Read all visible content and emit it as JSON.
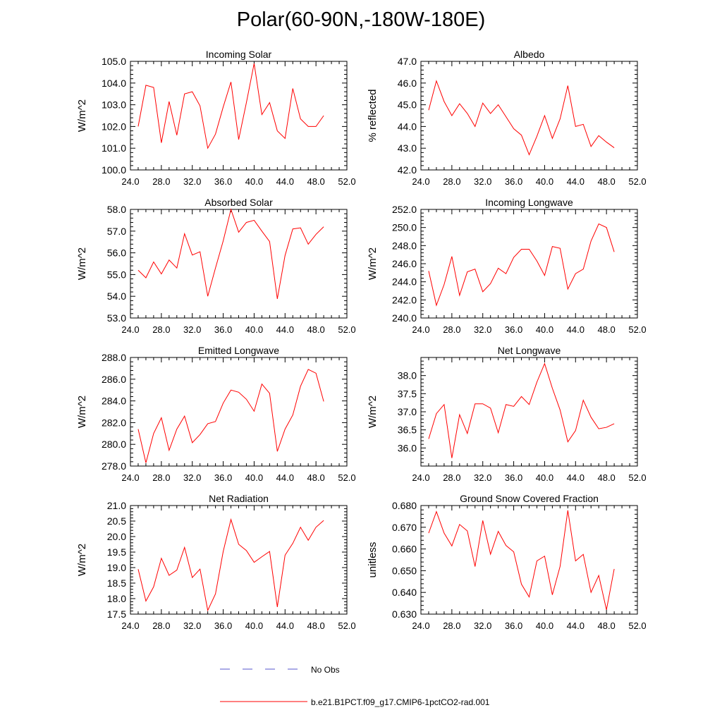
{
  "title": "Polar(60-90N,-180W-180E)",
  "colors": {
    "model_line": "#ff0000",
    "obs_line": "#5555cc",
    "axis": "#000000"
  },
  "legend": {
    "entries": [
      {
        "label": "No Obs",
        "style": "dashed",
        "color": "#5555cc"
      },
      {
        "label": "b.e21.B1PCT.f09_g17.CMIP6-1pctCO2-rad.001",
        "style": "solid",
        "color": "#ff0000"
      }
    ]
  },
  "chart_data": [
    {
      "type": "line",
      "title": "Incoming Solar",
      "ylabel": "W/m^2",
      "xlim": [
        24,
        52
      ],
      "ylim": [
        100,
        105
      ],
      "xticks": [
        24,
        28,
        32,
        36,
        40,
        44,
        48,
        52
      ],
      "xtick_labels": [
        "24.0",
        "28.0",
        "32.0",
        "36.0",
        "40.0",
        "44.0",
        "48.0",
        "52.0"
      ],
      "yticks": [
        100,
        101,
        102,
        103,
        104,
        105
      ],
      "ytick_labels": [
        "100.0",
        "101.0",
        "102.0",
        "103.0",
        "104.0",
        "105.0"
      ],
      "x": [
        25,
        26,
        27,
        28,
        29,
        30,
        31,
        32,
        33,
        34,
        35,
        36,
        37,
        38,
        39,
        40,
        41,
        42,
        43,
        44,
        45,
        46,
        47,
        48,
        49
      ],
      "series": [
        {
          "values": [
            102.0,
            103.9,
            103.8,
            101.25,
            103.15,
            101.6,
            103.5,
            103.6,
            102.95,
            101.0,
            101.65,
            102.9,
            104.05,
            101.4,
            103.1,
            104.9,
            102.55,
            103.1,
            101.8,
            101.45,
            103.75,
            102.35,
            102.0,
            102.0,
            102.5
          ]
        }
      ]
    },
    {
      "type": "line",
      "title": "Albedo",
      "ylabel": "% reflected",
      "xlim": [
        24,
        52
      ],
      "ylim": [
        42,
        47
      ],
      "xticks": [
        24,
        28,
        32,
        36,
        40,
        44,
        48,
        52
      ],
      "xtick_labels": [
        "24.0",
        "28.0",
        "32.0",
        "36.0",
        "40.0",
        "44.0",
        "48.0",
        "52.0"
      ],
      "yticks": [
        42,
        43,
        44,
        45,
        46,
        47
      ],
      "ytick_labels": [
        "42.0",
        "43.0",
        "44.0",
        "45.0",
        "46.0",
        "47.0"
      ],
      "x": [
        25,
        26,
        27,
        28,
        29,
        30,
        31,
        32,
        33,
        34,
        35,
        36,
        37,
        38,
        39,
        40,
        41,
        42,
        43,
        44,
        45,
        46,
        47,
        48,
        49
      ],
      "series": [
        {
          "values": [
            44.75,
            46.1,
            45.15,
            44.5,
            45.05,
            44.6,
            44.0,
            45.08,
            44.6,
            45.0,
            44.45,
            43.9,
            43.6,
            42.7,
            43.55,
            44.5,
            43.45,
            44.35,
            45.88,
            44.0,
            44.1,
            43.08,
            43.58,
            43.28,
            43.02
          ]
        }
      ]
    },
    {
      "type": "line",
      "title": "Absorbed Solar",
      "ylabel": "W/m^2",
      "xlim": [
        24,
        52
      ],
      "ylim": [
        53,
        58
      ],
      "xticks": [
        24,
        28,
        32,
        36,
        40,
        44,
        48,
        52
      ],
      "xtick_labels": [
        "24.0",
        "28.0",
        "32.0",
        "36.0",
        "40.0",
        "44.0",
        "48.0",
        "52.0"
      ],
      "yticks": [
        53,
        54,
        55,
        56,
        57,
        58
      ],
      "ytick_labels": [
        "53.0",
        "54.0",
        "55.0",
        "56.0",
        "57.0",
        "58.0"
      ],
      "x": [
        25,
        26,
        27,
        28,
        29,
        30,
        31,
        32,
        33,
        34,
        35,
        36,
        37,
        38,
        39,
        40,
        41,
        42,
        43,
        44,
        45,
        46,
        47,
        48,
        49
      ],
      "series": [
        {
          "values": [
            55.2,
            54.85,
            55.58,
            55.03,
            55.67,
            55.3,
            56.88,
            55.9,
            56.05,
            54.0,
            55.3,
            56.55,
            58.0,
            56.95,
            57.4,
            57.5,
            57.0,
            56.52,
            53.88,
            55.88,
            57.1,
            57.15,
            56.4,
            56.85,
            57.2
          ]
        }
      ]
    },
    {
      "type": "line",
      "title": "Incoming Longwave",
      "ylabel": "W/m^2",
      "xlim": [
        24,
        52
      ],
      "ylim": [
        240,
        252
      ],
      "xticks": [
        24,
        28,
        32,
        36,
        40,
        44,
        48,
        52
      ],
      "xtick_labels": [
        "24.0",
        "28.0",
        "32.0",
        "36.0",
        "40.0",
        "44.0",
        "48.0",
        "52.0"
      ],
      "yticks": [
        240,
        242,
        244,
        246,
        248,
        250,
        252
      ],
      "ytick_labels": [
        "240.0",
        "242.0",
        "244.0",
        "246.0",
        "248.0",
        "250.0",
        "252.0"
      ],
      "x": [
        25,
        26,
        27,
        28,
        29,
        30,
        31,
        32,
        33,
        34,
        35,
        36,
        37,
        38,
        39,
        40,
        41,
        42,
        43,
        44,
        45,
        46,
        47,
        48,
        49
      ],
      "series": [
        {
          "values": [
            245.2,
            241.4,
            243.7,
            246.8,
            242.5,
            245.1,
            245.4,
            242.9,
            243.8,
            245.5,
            244.9,
            246.7,
            247.6,
            247.6,
            246.3,
            244.7,
            247.9,
            247.7,
            243.2,
            244.9,
            245.4,
            248.5,
            250.4,
            250.0,
            247.3
          ]
        }
      ]
    },
    {
      "type": "line",
      "title": "Emitted Longwave",
      "ylabel": "W/m^2",
      "xlim": [
        24,
        52
      ],
      "ylim": [
        278,
        288
      ],
      "xticks": [
        24,
        28,
        32,
        36,
        40,
        44,
        48,
        52
      ],
      "xtick_labels": [
        "24.0",
        "28.0",
        "32.0",
        "36.0",
        "40.0",
        "44.0",
        "48.0",
        "52.0"
      ],
      "yticks": [
        278,
        280,
        282,
        284,
        286,
        288
      ],
      "ytick_labels": [
        "278.0",
        "280.0",
        "282.0",
        "284.0",
        "286.0",
        "288.0"
      ],
      "x": [
        25,
        26,
        27,
        28,
        29,
        30,
        31,
        32,
        33,
        34,
        35,
        36,
        37,
        38,
        39,
        40,
        41,
        42,
        43,
        44,
        45,
        46,
        47,
        48,
        49
      ],
      "series": [
        {
          "values": [
            281.4,
            278.3,
            281.0,
            282.45,
            279.45,
            281.4,
            282.6,
            280.15,
            280.9,
            281.9,
            282.1,
            283.8,
            285.0,
            284.8,
            284.15,
            283.05,
            285.55,
            284.7,
            279.35,
            281.4,
            282.7,
            285.35,
            286.9,
            286.55,
            283.95
          ]
        }
      ]
    },
    {
      "type": "line",
      "title": "Net Longwave",
      "ylabel": "W/m^2",
      "xlim": [
        24,
        52
      ],
      "ylim": [
        35.5,
        38.5
      ],
      "xticks": [
        24,
        28,
        32,
        36,
        40,
        44,
        48,
        52
      ],
      "xtick_labels": [
        "24.0",
        "28.0",
        "32.0",
        "36.0",
        "40.0",
        "44.0",
        "48.0",
        "52.0"
      ],
      "yticks": [
        36.0,
        36.5,
        37.0,
        37.5,
        38.0
      ],
      "ytick_labels": [
        "36.0",
        "36.5",
        "37.0",
        "37.5",
        "38.0"
      ],
      "x": [
        25,
        26,
        27,
        28,
        29,
        30,
        31,
        32,
        33,
        34,
        35,
        36,
        37,
        38,
        39,
        40,
        41,
        42,
        43,
        44,
        45,
        46,
        47,
        48,
        49
      ],
      "series": [
        {
          "values": [
            36.25,
            36.95,
            37.2,
            35.72,
            36.92,
            36.4,
            37.22,
            37.22,
            37.1,
            36.42,
            37.2,
            37.15,
            37.42,
            37.2,
            37.82,
            38.33,
            37.65,
            37.05,
            36.17,
            36.48,
            37.32,
            36.85,
            36.53,
            36.57,
            36.67
          ]
        }
      ]
    },
    {
      "type": "line",
      "title": "Net Radiation",
      "ylabel": "W/m^2",
      "xlim": [
        24,
        52
      ],
      "ylim": [
        17.5,
        21.0
      ],
      "xticks": [
        24,
        28,
        32,
        36,
        40,
        44,
        48,
        52
      ],
      "xtick_labels": [
        "24.0",
        "28.0",
        "32.0",
        "36.0",
        "40.0",
        "44.0",
        "48.0",
        "52.0"
      ],
      "yticks": [
        17.5,
        18.0,
        18.5,
        19.0,
        19.5,
        20.0,
        20.5,
        21.0
      ],
      "ytick_labels": [
        "17.5",
        "18.0",
        "18.5",
        "19.0",
        "19.5",
        "20.0",
        "20.5",
        "21.0"
      ],
      "x": [
        25,
        26,
        27,
        28,
        29,
        30,
        31,
        32,
        33,
        34,
        35,
        36,
        37,
        38,
        39,
        40,
        41,
        42,
        43,
        44,
        45,
        46,
        47,
        48,
        49
      ],
      "series": [
        {
          "values": [
            18.95,
            17.92,
            18.38,
            19.3,
            18.75,
            18.92,
            19.65,
            18.68,
            18.95,
            17.62,
            18.15,
            19.52,
            20.55,
            19.75,
            19.55,
            19.17,
            19.35,
            19.52,
            17.73,
            19.4,
            19.78,
            20.3,
            19.88,
            20.3,
            20.52
          ]
        }
      ]
    },
    {
      "type": "line",
      "title": "Ground Snow Covered Fraction",
      "ylabel": "unitless",
      "xlim": [
        24,
        52
      ],
      "ylim": [
        0.63,
        0.68
      ],
      "xticks": [
        24,
        28,
        32,
        36,
        40,
        44,
        48,
        52
      ],
      "xtick_labels": [
        "24.0",
        "28.0",
        "32.0",
        "36.0",
        "40.0",
        "44.0",
        "48.0",
        "52.0"
      ],
      "yticks": [
        0.63,
        0.64,
        0.65,
        0.66,
        0.67,
        0.68
      ],
      "ytick_labels": [
        "0.630",
        "0.640",
        "0.650",
        "0.660",
        "0.670",
        "0.680"
      ],
      "x": [
        25,
        26,
        27,
        28,
        29,
        30,
        31,
        32,
        33,
        34,
        35,
        36,
        37,
        38,
        39,
        40,
        41,
        42,
        43,
        44,
        45,
        46,
        47,
        48,
        49
      ],
      "series": [
        {
          "values": [
            0.6673,
            0.6772,
            0.6673,
            0.6614,
            0.6713,
            0.6683,
            0.6519,
            0.6731,
            0.6576,
            0.6681,
            0.6616,
            0.6587,
            0.6438,
            0.6379,
            0.6545,
            0.6567,
            0.6389,
            0.652,
            0.6778,
            0.6545,
            0.6575,
            0.64,
            0.6478,
            0.632,
            0.6508
          ]
        }
      ]
    }
  ]
}
